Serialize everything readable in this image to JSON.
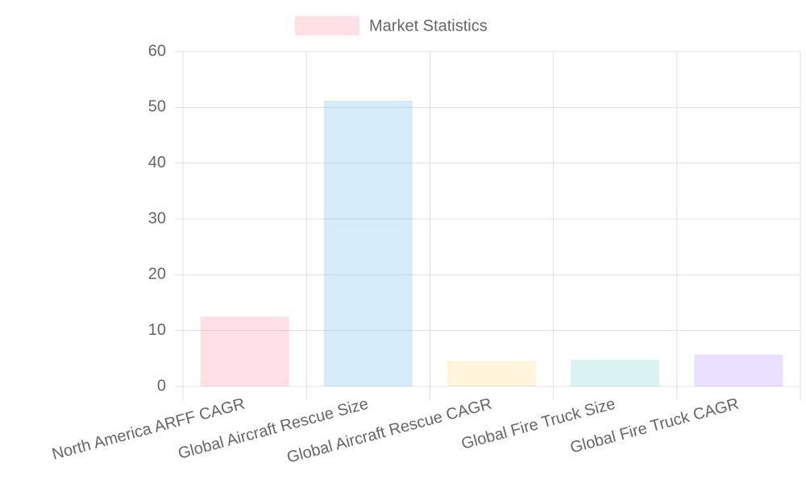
{
  "chart_data": {
    "type": "bar",
    "categories": [
      "North America ARFF CAGR",
      "Global Aircraft Rescue Size",
      "Global Aircraft Rescue CAGR",
      "Global Fire Truck Size",
      "Global Fire Truck CAGR"
    ],
    "series": [
      {
        "name": "Market Statistics",
        "color": "rgba(255,99,132,0.2)",
        "colors": [
          "rgba(255,99,132,0.2)",
          "rgba(54,162,235,0.2)",
          "rgba(255,206,86,0.2)",
          "rgba(75,192,192,0.2)",
          "rgba(153,102,255,0.2)"
        ],
        "values": [
          12.5,
          51.2,
          4.6,
          4.8,
          5.7
        ]
      }
    ],
    "ylim": [
      0,
      60
    ],
    "yticks": [
      0,
      10,
      20,
      30,
      40,
      50,
      60
    ],
    "grid": true,
    "legend": "top"
  }
}
